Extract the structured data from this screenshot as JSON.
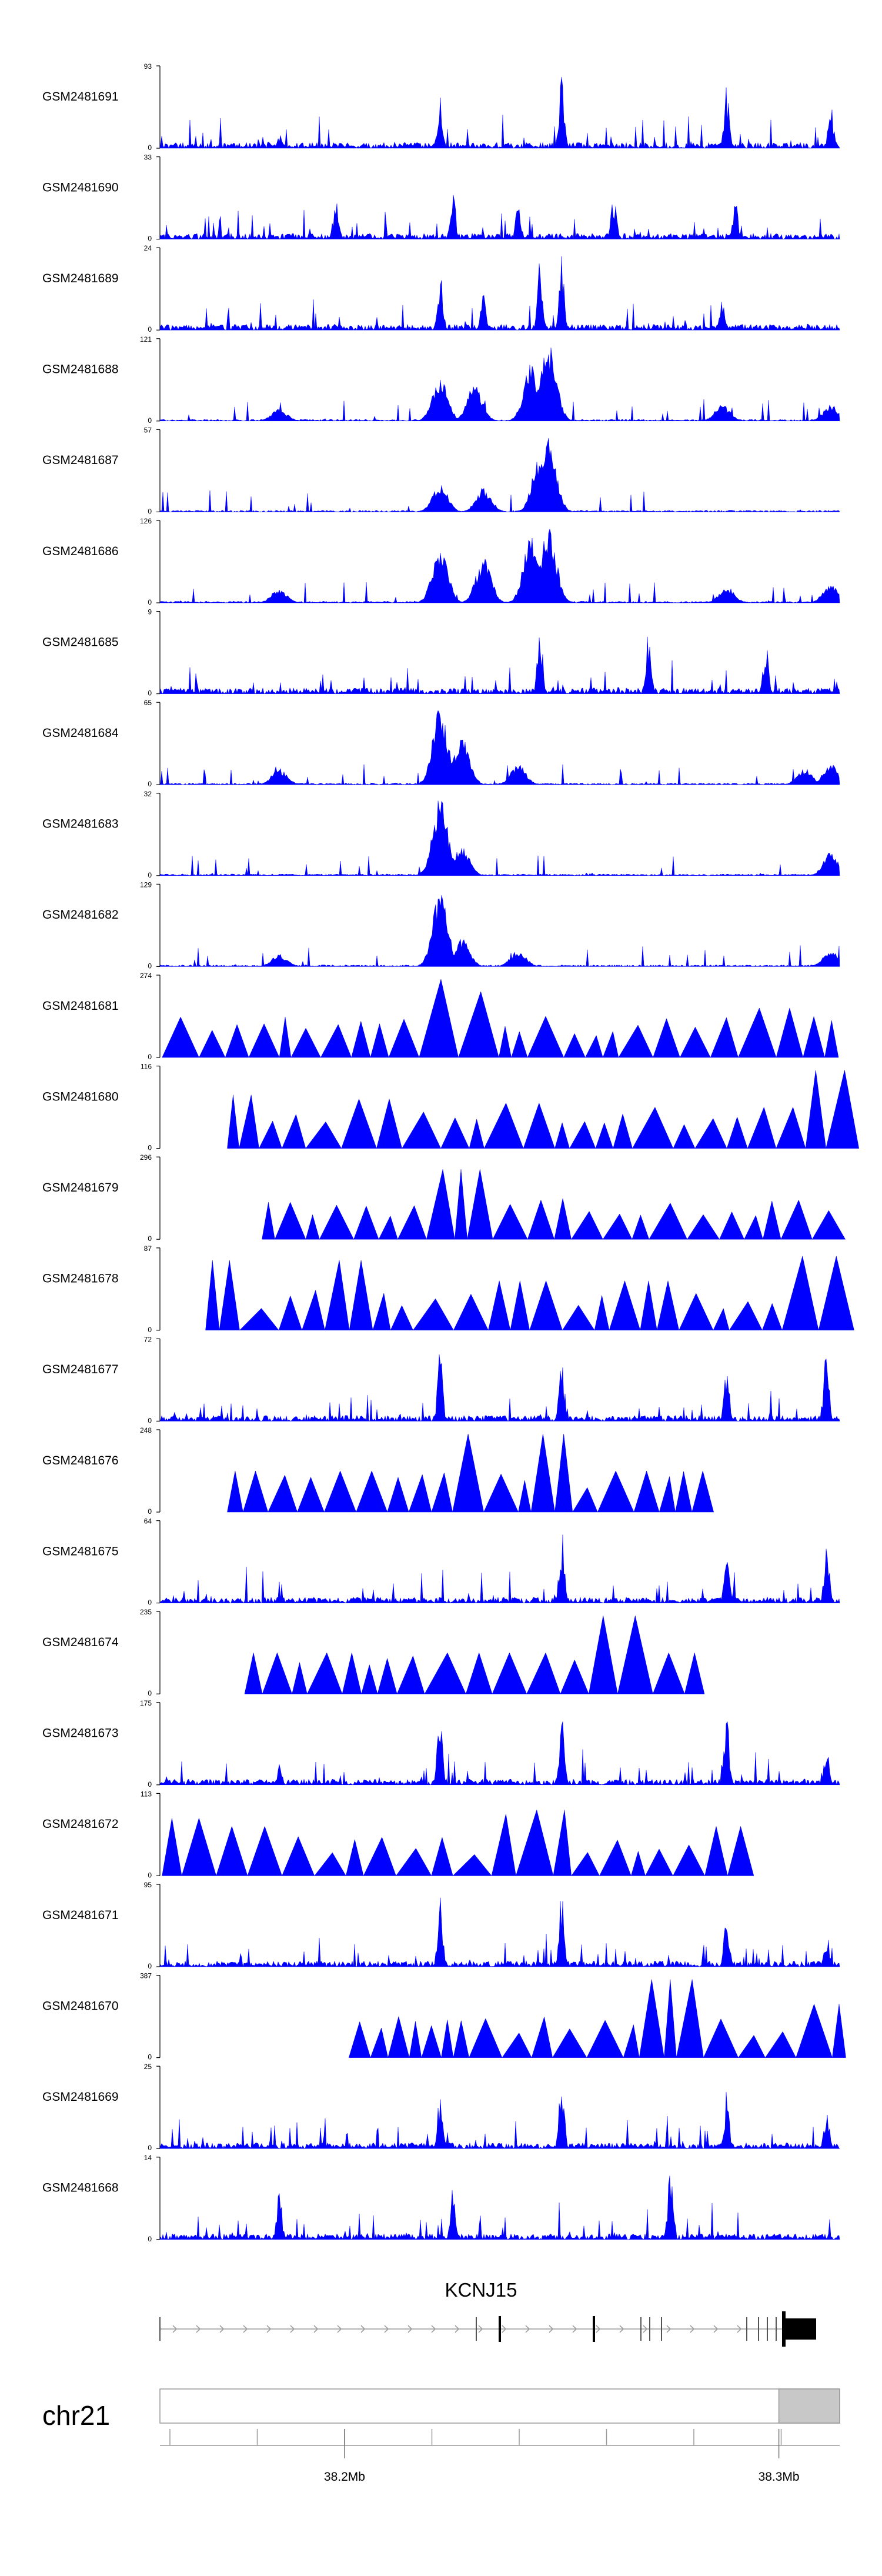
{
  "chart_data": {
    "type": "area",
    "title": "",
    "chromosome": "chr21",
    "x_axis": {
      "range_mb": [
        38.1575,
        38.314
      ],
      "ticks": [
        "38.2Mb",
        "38.3Mb"
      ],
      "tick_values_mb": [
        38.2,
        38.3
      ]
    },
    "gene": {
      "name": "KCNJ15",
      "strand": "+"
    },
    "fill_color": "#0000ff",
    "tracks": [
      {
        "name": "GSM2481691",
        "ymax": "93",
        "ymin": "0",
        "style": "dense",
        "peaks": [
          [
            38.185,
            0.18
          ],
          [
            38.222,
            0.75
          ],
          [
            38.25,
            1.0
          ],
          [
            38.288,
            0.8
          ],
          [
            38.312,
            0.6
          ]
        ]
      },
      {
        "name": "GSM2481690",
        "ymax": "33",
        "ymin": "0",
        "style": "dense",
        "peaks": [
          [
            38.198,
            0.6
          ],
          [
            38.225,
            0.65
          ],
          [
            38.24,
            0.5
          ],
          [
            38.262,
            0.6
          ],
          [
            38.29,
            0.55
          ]
        ]
      },
      {
        "name": "GSM2481689",
        "ymax": "24",
        "ymin": "0",
        "style": "dense",
        "peaks": [
          [
            38.222,
            0.75
          ],
          [
            38.232,
            0.6
          ],
          [
            38.245,
            0.85
          ],
          [
            38.25,
            0.9
          ],
          [
            38.287,
            0.4
          ]
        ]
      },
      {
        "name": "GSM2481688",
        "ymax": "121",
        "ymin": "0",
        "style": "blob",
        "peaks": [
          [
            38.185,
            0.15
          ],
          [
            38.222,
            0.55
          ],
          [
            38.23,
            0.45
          ],
          [
            38.243,
            0.7
          ],
          [
            38.247,
            0.95
          ],
          [
            38.287,
            0.2
          ],
          [
            38.312,
            0.2
          ]
        ]
      },
      {
        "name": "GSM2481687",
        "ymax": "57",
        "ymin": "0",
        "style": "blob",
        "peaks": [
          [
            38.222,
            0.35
          ],
          [
            38.232,
            0.3
          ],
          [
            38.245,
            0.7
          ],
          [
            38.247,
            0.9
          ]
        ]
      },
      {
        "name": "GSM2481686",
        "ymax": "126",
        "ymin": "0",
        "style": "blob",
        "peaks": [
          [
            38.185,
            0.18
          ],
          [
            38.222,
            0.7
          ],
          [
            38.232,
            0.55
          ],
          [
            38.243,
            0.85
          ],
          [
            38.247,
            0.95
          ],
          [
            38.288,
            0.2
          ],
          [
            38.312,
            0.25
          ]
        ]
      },
      {
        "name": "GSM2481685",
        "ymax": "9",
        "ymin": "0",
        "style": "dense",
        "peaks": [
          [
            38.245,
            0.9
          ],
          [
            38.27,
            0.8
          ],
          [
            38.297,
            0.7
          ]
        ]
      },
      {
        "name": "GSM2481684",
        "ymax": "65",
        "ymin": "0",
        "style": "blob",
        "peaks": [
          [
            38.185,
            0.2
          ],
          [
            38.222,
            0.95
          ],
          [
            38.227,
            0.6
          ],
          [
            38.24,
            0.25
          ],
          [
            38.306,
            0.2
          ],
          [
            38.312,
            0.25
          ]
        ]
      },
      {
        "name": "GSM2481683",
        "ymax": "32",
        "ymin": "0",
        "style": "blob",
        "peaks": [
          [
            38.222,
            0.95
          ],
          [
            38.227,
            0.35
          ],
          [
            38.312,
            0.3
          ]
        ]
      },
      {
        "name": "GSM2481682",
        "ymax": "129",
        "ymin": "0",
        "style": "blob",
        "peaks": [
          [
            38.185,
            0.15
          ],
          [
            38.222,
            0.95
          ],
          [
            38.227,
            0.35
          ],
          [
            38.24,
            0.2
          ],
          [
            38.312,
            0.2
          ]
        ]
      },
      {
        "name": "GSM2481681",
        "ymax": "274",
        "ymin": "0",
        "style": "sparse",
        "peaks": [
          [
            38.16,
            0.45
          ],
          [
            38.18,
            0.4
          ],
          [
            38.222,
            0.95
          ],
          [
            38.232,
            0.8
          ],
          [
            38.245,
            0.5
          ],
          [
            38.3,
            0.6
          ],
          [
            38.312,
            0.45
          ]
        ]
      },
      {
        "name": "GSM2481680",
        "ymax": "116",
        "ymin": "0",
        "style": "sparse",
        "peaks": [
          [
            38.177,
            0.65
          ],
          [
            38.21,
            0.6
          ],
          [
            38.24,
            0.55
          ],
          [
            38.27,
            0.5
          ],
          [
            38.3,
            0.5
          ],
          [
            38.312,
            0.95
          ]
        ]
      },
      {
        "name": "GSM2481679",
        "ymax": "296",
        "ymin": "0",
        "style": "sparse",
        "peaks": [
          [
            38.185,
            0.45
          ],
          [
            38.222,
            0.75
          ],
          [
            38.227,
            0.85
          ],
          [
            38.28,
            0.3
          ],
          [
            38.312,
            0.35
          ]
        ]
      },
      {
        "name": "GSM2481678",
        "ymax": "87",
        "ymin": "0",
        "style": "sparse",
        "peaks": [
          [
            38.172,
            0.85
          ],
          [
            38.2,
            0.85
          ],
          [
            38.24,
            0.6
          ],
          [
            38.27,
            0.6
          ],
          [
            38.31,
            0.9
          ]
        ]
      },
      {
        "name": "GSM2481677",
        "ymax": "72",
        "ymin": "0",
        "style": "dense",
        "peaks": [
          [
            38.222,
            0.95
          ],
          [
            38.25,
            0.8
          ],
          [
            38.288,
            0.8
          ],
          [
            38.311,
            0.95
          ]
        ]
      },
      {
        "name": "GSM2481676",
        "ymax": "248",
        "ymin": "0",
        "style": "sparse",
        "peaks": [
          [
            38.177,
            0.5
          ],
          [
            38.2,
            0.5
          ],
          [
            38.228,
            0.95
          ],
          [
            38.251,
            0.95
          ],
          [
            38.265,
            0.5
          ],
          [
            38.282,
            0.5
          ]
        ]
      },
      {
        "name": "GSM2481675",
        "ymax": "64",
        "ymin": "0",
        "style": "dense",
        "peaks": [
          [
            38.25,
            0.95
          ],
          [
            38.288,
            0.75
          ],
          [
            38.311,
            0.85
          ]
        ]
      },
      {
        "name": "GSM2481674",
        "ymax": "235",
        "ymin": "0",
        "style": "sparse",
        "peaks": [
          [
            38.181,
            0.5
          ],
          [
            38.2,
            0.5
          ],
          [
            38.23,
            0.5
          ],
          [
            38.245,
            0.5
          ],
          [
            38.26,
            0.95
          ],
          [
            38.27,
            0.5
          ],
          [
            38.28,
            0.5
          ]
        ]
      },
      {
        "name": "GSM2481673",
        "ymax": "175",
        "ymin": "0",
        "style": "dense",
        "peaks": [
          [
            38.185,
            0.25
          ],
          [
            38.222,
            0.95
          ],
          [
            38.25,
            0.95
          ],
          [
            38.288,
            0.9
          ],
          [
            38.311,
            0.5
          ]
        ]
      },
      {
        "name": "GSM2481672",
        "ymax": "113",
        "ymin": "0",
        "style": "sparse",
        "peaks": [
          [
            38.16,
            0.7
          ],
          [
            38.18,
            0.6
          ],
          [
            38.24,
            0.75
          ],
          [
            38.25,
            0.8
          ],
          [
            38.29,
            0.6
          ]
        ]
      },
      {
        "name": "GSM2481671",
        "ymax": "95",
        "ymin": "0",
        "style": "dense",
        "peaks": [
          [
            38.222,
            0.95
          ],
          [
            38.25,
            0.95
          ],
          [
            38.288,
            0.8
          ],
          [
            38.311,
            0.45
          ]
        ]
      },
      {
        "name": "GSM2481670",
        "ymax": "387",
        "ymin": "0",
        "style": "sparse",
        "peaks": [
          [
            38.205,
            0.35
          ],
          [
            38.22,
            0.35
          ],
          [
            38.235,
            0.3
          ],
          [
            38.255,
            0.35
          ],
          [
            38.265,
            0.4
          ],
          [
            38.275,
            0.95
          ],
          [
            38.313,
            0.65
          ]
        ]
      },
      {
        "name": "GSM2481669",
        "ymax": "25",
        "ymin": "0",
        "style": "dense",
        "peaks": [
          [
            38.222,
            0.7
          ],
          [
            38.25,
            0.95
          ],
          [
            38.288,
            0.75
          ],
          [
            38.311,
            0.55
          ]
        ]
      },
      {
        "name": "GSM2481668",
        "ymax": "14",
        "ymin": "0",
        "style": "dense",
        "peaks": [
          [
            38.275,
            0.95
          ],
          [
            38.225,
            0.7
          ],
          [
            38.185,
            0.6
          ]
        ]
      }
    ]
  }
}
